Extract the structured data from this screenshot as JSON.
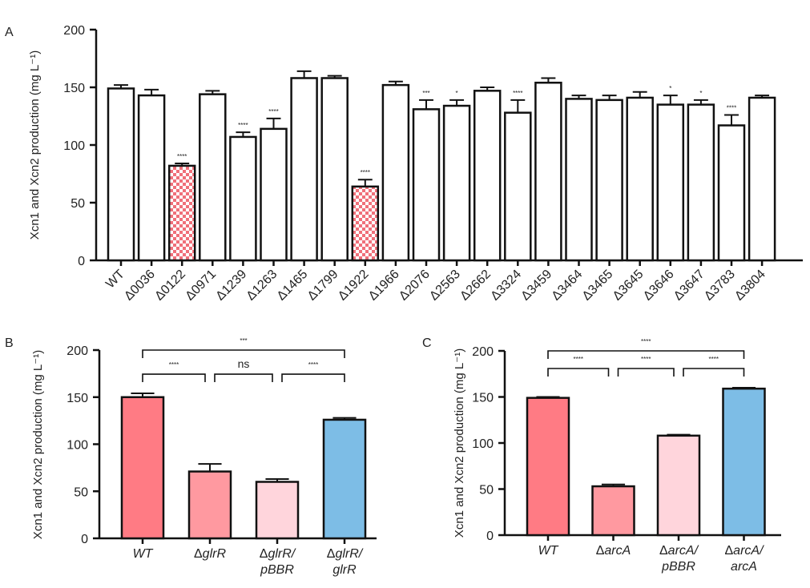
{
  "chart_data": [
    {
      "panel": "A",
      "type": "bar",
      "ylabel": "Xcn1 and Xcn2 production (mg L⁻¹)",
      "ylim": [
        0,
        200
      ],
      "yticks": [
        0,
        50,
        100,
        150,
        200
      ],
      "categories": [
        "WT",
        "Δ0036",
        "Δ0122",
        "Δ0971",
        "Δ1239",
        "Δ1263",
        "Δ1465",
        "Δ1799",
        "Δ1922",
        "Δ1966",
        "Δ2076",
        "Δ2563",
        "Δ2662",
        "Δ3324",
        "Δ3459",
        "Δ3464",
        "Δ3465",
        "Δ3645",
        "Δ3646",
        "Δ3647",
        "Δ3783",
        "Δ3804"
      ],
      "values": [
        149,
        143,
        82,
        144,
        107,
        114,
        158,
        158,
        64,
        152,
        131,
        134,
        147,
        128,
        154,
        140,
        139,
        141,
        135,
        135,
        117,
        141
      ],
      "errors": [
        3,
        5,
        2,
        3,
        4,
        9,
        6,
        2,
        6,
        3,
        8,
        5,
        3,
        11,
        4,
        3,
        4,
        5,
        8,
        4,
        9,
        2
      ],
      "significance": [
        "",
        "",
        "****",
        "",
        "****",
        "****",
        "",
        "",
        "****",
        "",
        "***",
        "*",
        "",
        "****",
        "",
        "",
        "",
        "",
        "*",
        "*",
        "****",
        ""
      ],
      "fills": [
        "white",
        "white",
        "checker",
        "white",
        "white",
        "white",
        "white",
        "white",
        "checker",
        "white",
        "white",
        "white",
        "white",
        "white",
        "white",
        "white",
        "white",
        "white",
        "white",
        "white",
        "white",
        "white"
      ]
    },
    {
      "panel": "B",
      "type": "bar",
      "ylabel": "Xcn1 and Xcn2 production (mg L⁻¹)",
      "ylim": [
        0,
        200
      ],
      "yticks": [
        0,
        50,
        100,
        150,
        200
      ],
      "categories": [
        [
          {
            "t": "WT",
            "i": true
          }
        ],
        [
          {
            "t": "Δ",
            "i": false
          },
          {
            "t": "glrR",
            "i": true
          }
        ],
        [
          {
            "t": "Δ",
            "i": false
          },
          {
            "t": "glrR/",
            "i": true
          },
          {
            "nl": true
          },
          {
            "t": "pBBR",
            "i": true
          }
        ],
        [
          {
            "t": "Δ",
            "i": false
          },
          {
            "t": "glrR/",
            "i": true
          },
          {
            "nl": true
          },
          {
            "t": "glrR",
            "i": true
          }
        ]
      ],
      "values": [
        150,
        71,
        60,
        126
      ],
      "errors": [
        4,
        8,
        3,
        2
      ],
      "colors": [
        "#ff7b84",
        "#ff99a0",
        "#ffd5dc",
        "#7dbde6"
      ],
      "comparisons": [
        {
          "from": 0,
          "to": 3,
          "label": "***"
        },
        {
          "from": 0,
          "to": 1,
          "label": "****"
        },
        {
          "from": 1,
          "to": 2,
          "label": "ns"
        },
        {
          "from": 2,
          "to": 3,
          "label": "****"
        }
      ]
    },
    {
      "panel": "C",
      "type": "bar",
      "ylabel": "Xcn1 and Xcn2 production (mg L⁻¹)",
      "ylim": [
        0,
        200
      ],
      "yticks": [
        0,
        50,
        100,
        150,
        200
      ],
      "categories": [
        [
          {
            "t": "WT",
            "i": true
          }
        ],
        [
          {
            "t": "Δ",
            "i": false
          },
          {
            "t": "arcA",
            "i": true
          }
        ],
        [
          {
            "t": "Δ",
            "i": false
          },
          {
            "t": "arcA/",
            "i": true
          },
          {
            "nl": true
          },
          {
            "t": "pBBR",
            "i": true
          }
        ],
        [
          {
            "t": "Δ",
            "i": false
          },
          {
            "t": "arcA/",
            "i": true
          },
          {
            "nl": true
          },
          {
            "t": "arcA",
            "i": true
          }
        ]
      ],
      "values": [
        149,
        53,
        108,
        159
      ],
      "errors": [
        1,
        2,
        1,
        1
      ],
      "colors": [
        "#ff7b84",
        "#ff99a0",
        "#ffd5dc",
        "#7dbde6"
      ],
      "comparisons": [
        {
          "from": 0,
          "to": 3,
          "label": "****"
        },
        {
          "from": 0,
          "to": 1,
          "label": "****"
        },
        {
          "from": 1,
          "to": 2,
          "label": "****"
        },
        {
          "from": 2,
          "to": 3,
          "label": "****"
        }
      ]
    }
  ]
}
